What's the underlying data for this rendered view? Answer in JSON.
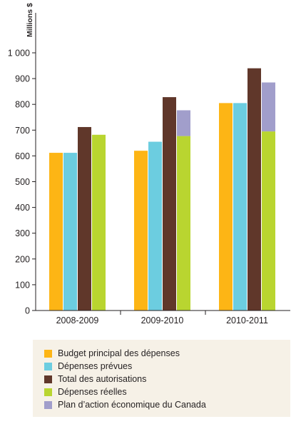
{
  "chart_data": {
    "type": "bar",
    "stacked_series": "Dépenses réelles + Plan d’action économique du Canada",
    "unit_label": "Millions $",
    "categories": [
      "2008-2009",
      "2009-2010",
      "2010-2011"
    ],
    "ylim": [
      0,
      1000
    ],
    "yticks": [
      0,
      100,
      200,
      300,
      400,
      500,
      600,
      700,
      800,
      900,
      1000
    ],
    "ytick_labels": [
      "0",
      "100",
      "200",
      "300",
      "400",
      "500",
      "600",
      "700",
      "800",
      "900",
      "1 000"
    ],
    "grid": false,
    "legend_placement": "bottom",
    "series": [
      {
        "name": "Budget principal des dépenses",
        "color": "#fdb515",
        "values": [
          612,
          620,
          805
        ]
      },
      {
        "name": "Dépenses prévues",
        "color": "#6ccde0",
        "values": [
          612,
          655,
          805
        ]
      },
      {
        "name": "Total des autorisations",
        "color": "#60372a",
        "values": [
          712,
          828,
          940
        ]
      },
      {
        "name": "Dépenses réelles",
        "color": "#b9d530",
        "values": [
          682,
          677,
          695
        ]
      },
      {
        "name": "Plan d’action économique du Canada",
        "color": "#a19ecb",
        "values": [
          0,
          100,
          190
        ]
      }
    ]
  }
}
